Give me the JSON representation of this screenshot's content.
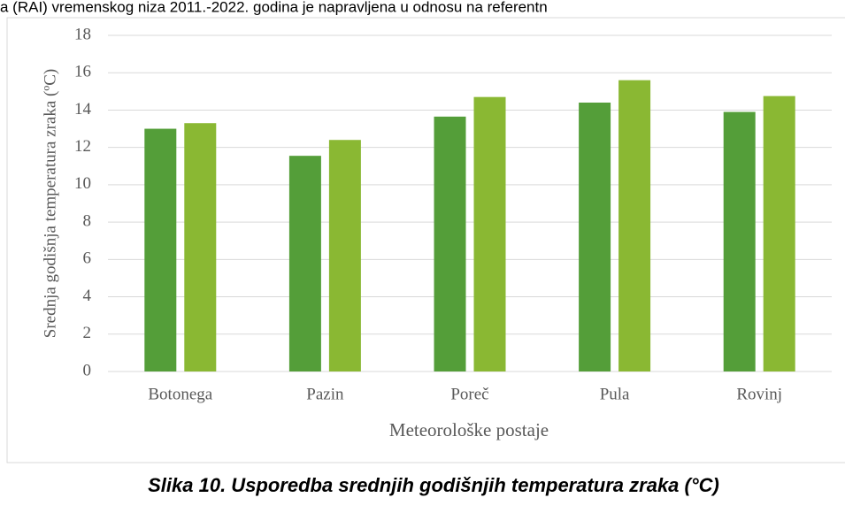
{
  "document_text": "a (RAI) vremenskog niza 2011.-2022. godina je napravljena u odnosu na referentn",
  "caption": "Slika 10. Usporedba srednjih godišnjih temperatura zraka (°C)",
  "chart_data": {
    "type": "bar",
    "y_label": "Srednja godišnja temperatura zraka (ºC)",
    "x_label": "Meteorološke postaje",
    "categories": [
      "Botonega",
      "Pazin",
      "Poreč",
      "Pula",
      "Rovinj"
    ],
    "series": [
      {
        "color": "#549e39",
        "values": [
          13.0,
          11.55,
          13.65,
          14.4,
          13.9
        ]
      },
      {
        "color": "#8ab833",
        "values": [
          13.3,
          12.4,
          14.7,
          15.6,
          14.75
        ]
      }
    ],
    "ylim": [
      0,
      18
    ],
    "yticks": [
      0,
      2,
      4,
      6,
      8,
      10,
      12,
      14,
      16,
      18
    ],
    "grid": true
  }
}
